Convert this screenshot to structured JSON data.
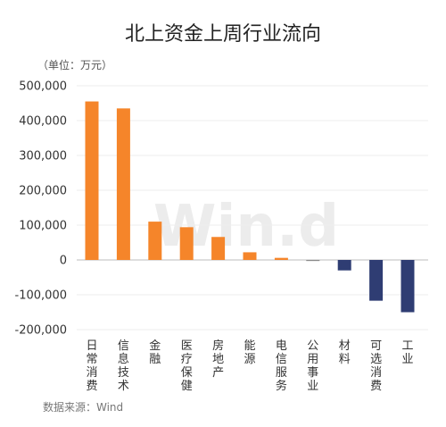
{
  "chart_data": {
    "type": "bar",
    "title": "北上资金上周行业流向",
    "unit_label": "（单位：万元）",
    "source": "数据来源：Wind",
    "watermark": "Win.d",
    "categories": [
      "日常消费",
      "信息技术",
      "金融",
      "医疗保健",
      "房地产",
      "能源",
      "电信服务",
      "公用事业",
      "材料",
      "可选消费",
      "工业"
    ],
    "values": [
      455000,
      435000,
      110000,
      94000,
      66000,
      22000,
      6000,
      -3000,
      -30000,
      -117000,
      -150000
    ],
    "ylim": [
      -200000,
      500000
    ],
    "yticks": [
      500000,
      400000,
      300000,
      200000,
      100000,
      0,
      -100000,
      -200000
    ],
    "ytick_labels": [
      "500,000",
      "400,000",
      "300,000",
      "200,000",
      "100,000",
      "0",
      "-100,000",
      "-200,000"
    ],
    "grid": true,
    "colors": {
      "positive": "#f5852a",
      "negative": "#2f3d73",
      "small_negative": "#8a8a8a"
    }
  }
}
